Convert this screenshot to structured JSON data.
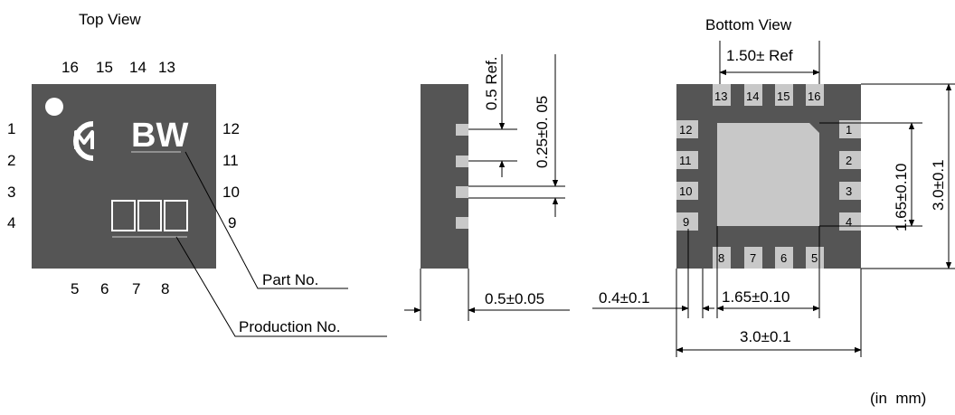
{
  "top_view": {
    "title": "Top View",
    "pins_top": [
      "16",
      "15",
      "14",
      "13"
    ],
    "pins_left": [
      "1",
      "2",
      "3",
      "4"
    ],
    "pins_right": [
      "12",
      "11",
      "10",
      "9"
    ],
    "pins_bottom": [
      "5",
      "6",
      "7",
      "8"
    ],
    "marking": "BW",
    "logo_text": "CM",
    "part_no_label": "Part No.",
    "production_no_label": "Production No."
  },
  "side_view": {
    "dim_pitch": "0.5 Ref.",
    "dim_pad_width": "0.25±0. 05",
    "dim_thickness": "0.5±0.05"
  },
  "bottom_view": {
    "title": "Bottom View",
    "dim_top": "1.50± Ref",
    "pins_top": [
      "13",
      "14",
      "15",
      "16"
    ],
    "pins_left": [
      "12",
      "11",
      "10",
      "9"
    ],
    "pins_right": [
      "1",
      "2",
      "3",
      "4"
    ],
    "pins_bottom": [
      "8",
      "7",
      "6",
      "5"
    ],
    "dim_pad_vertical": "1.65±0.10",
    "dim_body_vertical": "3.0±0.1",
    "dim_offset": "0.4±0.1",
    "dim_pad_horizontal": "1.65±0.10",
    "dim_body_horizontal": "3.0±0.1"
  },
  "units_note": "(in  mm)",
  "colors": {
    "package_body": "#555555",
    "pad": "#c8c8c8",
    "marking": "#ffffff"
  }
}
